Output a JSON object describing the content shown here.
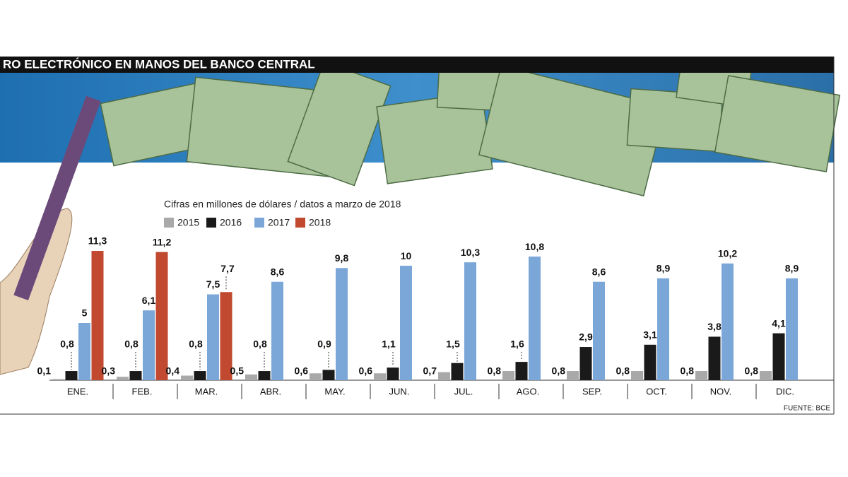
{
  "chart_data": {
    "type": "bar",
    "title": "RO ELECTRÓNICO EN MANOS DEL BANCO CENTRAL",
    "subtitle": "Cifras en millones de dólares / datos a marzo de 2018",
    "source": "FUENTE: BCE",
    "categories": [
      "ENE.",
      "FEB.",
      "MAR.",
      "ABR.",
      "MAY.",
      "JUN.",
      "JUL.",
      "AGO.",
      "SEP.",
      "OCT.",
      "NOV.",
      "DIC."
    ],
    "series": [
      {
        "name": "2015",
        "color": "#a9a9a9",
        "values": [
          0.1,
          0.3,
          0.4,
          0.5,
          0.6,
          0.6,
          0.7,
          0.8,
          0.8,
          0.8,
          0.8,
          0.8
        ],
        "value_labels": [
          "0,1",
          "0,3",
          "0,4",
          "0,5",
          "0,6",
          "0,6",
          "0,7",
          "0,8",
          "0,8",
          "0,8",
          "0,8",
          "0,8"
        ]
      },
      {
        "name": "2016",
        "color": "#1a1a1a",
        "values": [
          0.8,
          0.8,
          0.8,
          0.8,
          0.9,
          1.1,
          1.5,
          1.6,
          2.9,
          3.1,
          3.8,
          4.1
        ],
        "value_labels": [
          "0,8",
          "0,8",
          "0,8",
          "0,8",
          "0,9",
          "1,1",
          "1,5",
          "1,6",
          "2,9",
          "3,1",
          "3,8",
          "4,1"
        ]
      },
      {
        "name": "2017",
        "color": "#7aa7d8",
        "values": [
          5,
          6.1,
          7.5,
          8.6,
          9.8,
          10,
          10.3,
          10.8,
          8.6,
          8.9,
          10.2,
          8.9
        ],
        "value_labels": [
          "5",
          "6,1",
          "7,5",
          "8,6",
          "9,8",
          "10",
          "10,3",
          "10,8",
          "8,6",
          "8,9",
          "10,2",
          "8,9"
        ]
      },
      {
        "name": "2018",
        "color": "#c0492f",
        "values": [
          11.3,
          11.2,
          7.7,
          null,
          null,
          null,
          null,
          null,
          null,
          null,
          null,
          null
        ],
        "value_labels": [
          "11,3",
          "11,2",
          "7,7",
          null,
          null,
          null,
          null,
          null,
          null,
          null,
          null,
          null
        ]
      }
    ]
  }
}
